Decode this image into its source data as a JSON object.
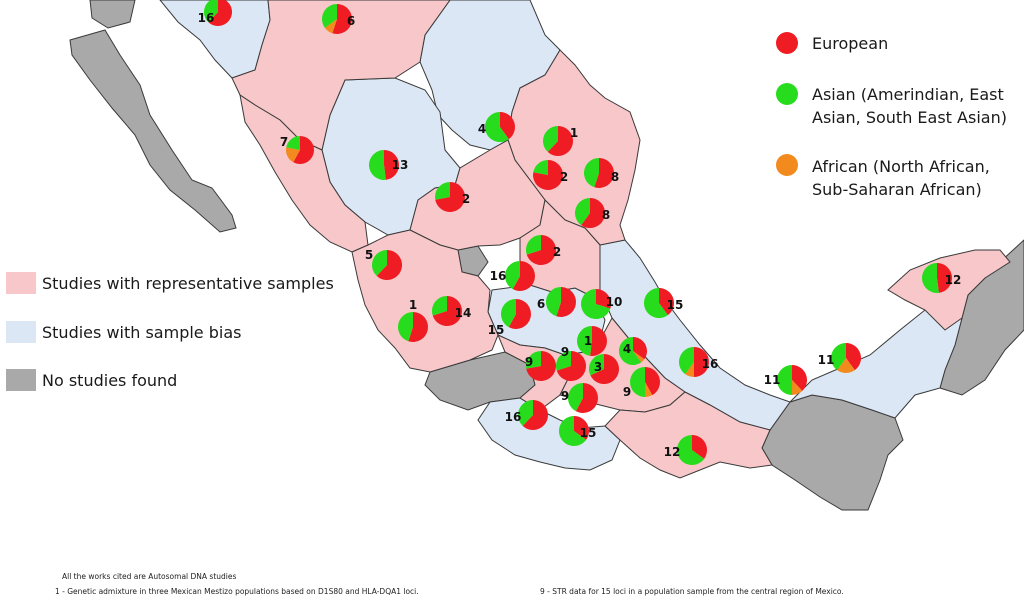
{
  "colors": {
    "representative": "#f7c7c9",
    "bias": "#dbe7f5",
    "none": "#a9a9a9",
    "border": "#3a3a3a",
    "european": "#ef1c24",
    "asian": "#27dc1c",
    "african": "#f28a1e"
  },
  "legend": {
    "european": "European",
    "asian_line1": "Asian (Amerindian, East",
    "asian_line2": "Asian, South East Asian)",
    "african_line1": "African (North African,",
    "african_line2": "Sub-Saharan African)",
    "representative": "Studies with representative samples",
    "bias": "Studies with sample bias",
    "none": "No studies found"
  },
  "footnotes": {
    "header": "All the works cited are Autosomal DNA studies",
    "note1": "1 - Genetic admixture in three Mexican Mestizo populations based on D1S80 and HLA-DQA1 loci.",
    "note9": "9 - STR data for 15 loci in a population sample from the central region of Mexico."
  },
  "pies": [
    {
      "label": "16",
      "european": 0.62,
      "asian": 0.38,
      "african": 0.0
    },
    {
      "label": "6",
      "european": 0.55,
      "asian": 0.35,
      "african": 0.1
    },
    {
      "label": "4",
      "european": 0.4,
      "asian": 0.6,
      "african": 0.0
    },
    {
      "label": "1",
      "european": 0.62,
      "asian": 0.38,
      "african": 0.0
    },
    {
      "label": "7",
      "european": 0.58,
      "asian": 0.22,
      "african": 0.2
    },
    {
      "label": "13",
      "european": 0.48,
      "asian": 0.52,
      "african": 0.0
    },
    {
      "label": "2",
      "european": 0.72,
      "asian": 0.28,
      "african": 0.0
    },
    {
      "label": "8",
      "european": 0.55,
      "asian": 0.45,
      "african": 0.0
    },
    {
      "label": "2",
      "european": 0.78,
      "asian": 0.22,
      "african": 0.0
    },
    {
      "label": "8",
      "european": 0.6,
      "asian": 0.4,
      "african": 0.0
    },
    {
      "label": "2",
      "european": 0.7,
      "asian": 0.3,
      "african": 0.0
    },
    {
      "label": "5",
      "european": 0.62,
      "asian": 0.38,
      "african": 0.0
    },
    {
      "label": "16",
      "european": 0.58,
      "asian": 0.42,
      "african": 0.0
    },
    {
      "label": "6",
      "european": 0.55,
      "asian": 0.45,
      "african": 0.0
    },
    {
      "label": "10",
      "european": 0.3,
      "asian": 0.7,
      "african": 0.0
    },
    {
      "label": "15",
      "european": 0.4,
      "asian": 0.6,
      "african": 0.0
    },
    {
      "label": "1",
      "european": 0.55,
      "asian": 0.45,
      "african": 0.0
    },
    {
      "label": "14",
      "european": 0.7,
      "asian": 0.3,
      "african": 0.0
    },
    {
      "label": "15",
      "european": 0.58,
      "asian": 0.42,
      "african": 0.0
    },
    {
      "label": "1",
      "european": 0.52,
      "asian": 0.48,
      "african": 0.0
    },
    {
      "label": "4",
      "european": 0.35,
      "asian": 0.6,
      "african": 0.05
    },
    {
      "label": "16",
      "european": 0.5,
      "asian": 0.4,
      "african": 0.1
    },
    {
      "label": "9",
      "european": 0.72,
      "asian": 0.28,
      "african": 0.0
    },
    {
      "label": "9",
      "european": 0.7,
      "asian": 0.3,
      "african": 0.0
    },
    {
      "label": "3",
      "european": 0.68,
      "asian": 0.32,
      "african": 0.0
    },
    {
      "label": "9",
      "european": 0.42,
      "asian": 0.5,
      "african": 0.08
    },
    {
      "label": "9",
      "european": 0.58,
      "asian": 0.42,
      "african": 0.0
    },
    {
      "label": "16",
      "european": 0.62,
      "asian": 0.38,
      "african": 0.0
    },
    {
      "label": "15",
      "european": 0.35,
      "asian": 0.65,
      "african": 0.0
    },
    {
      "label": "12",
      "european": 0.35,
      "asian": 0.65,
      "african": 0.0
    },
    {
      "label": "11",
      "european": 0.38,
      "asian": 0.5,
      "african": 0.12
    },
    {
      "label": "11",
      "european": 0.4,
      "asian": 0.4,
      "african": 0.2
    },
    {
      "label": "12",
      "european": 0.48,
      "asian": 0.52,
      "african": 0.0
    }
  ]
}
